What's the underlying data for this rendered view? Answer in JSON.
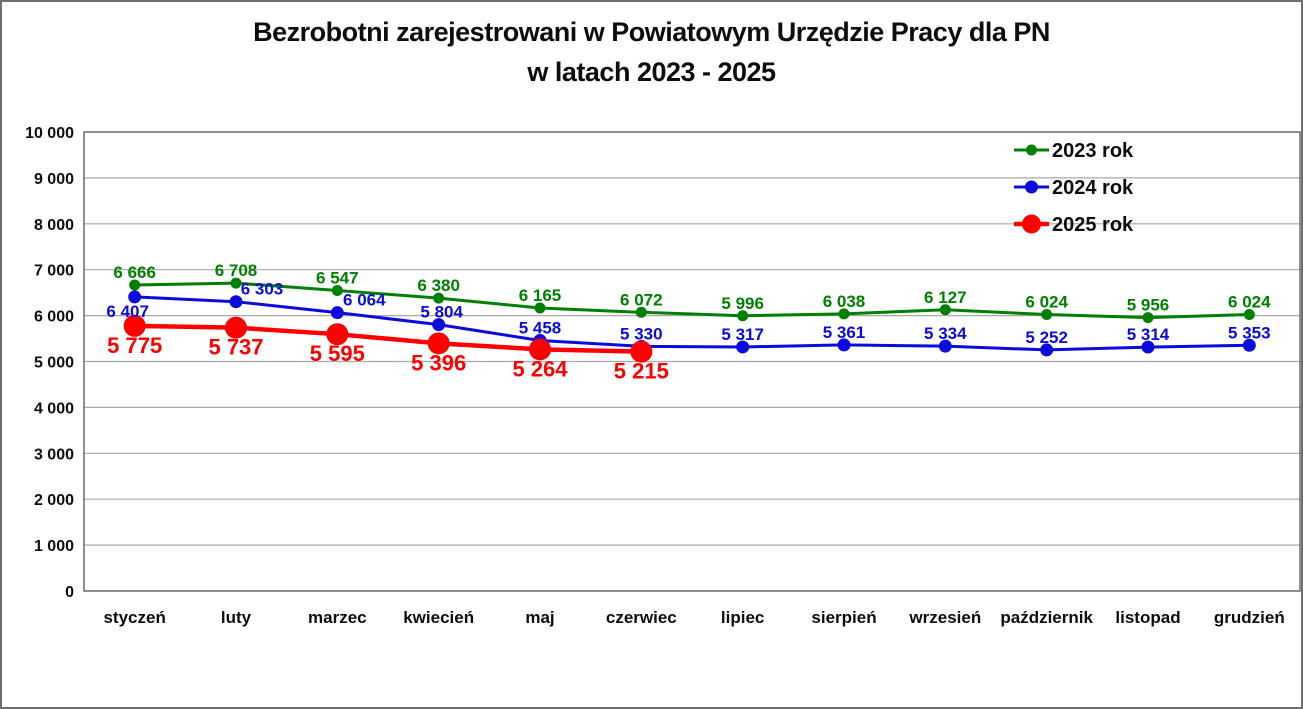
{
  "title": {
    "line1": "Bezrobotni zarejestrowani w Powiatowym Urzędzie Pracy dla PN",
    "line2": "w latach 2023 - 2025"
  },
  "chart_data": {
    "type": "line",
    "title": "Bezrobotni zarejestrowani w Powiatowym Urzędzie Pracy dla PN w latach 2023 - 2025",
    "xlabel": "",
    "ylabel": "",
    "grid": true,
    "legend_position": "top-right",
    "categories": [
      "styczeń",
      "luty",
      "marzec",
      "kwiecień",
      "maj",
      "czerwiec",
      "lipiec",
      "sierpień",
      "wrzesień",
      "październik",
      "listopad",
      "grudzień"
    ],
    "y_axis": {
      "min": 0,
      "max": 10000,
      "step": 1000,
      "tick_labels": [
        "0",
        "1 000",
        "2 000",
        "3 000",
        "4 000",
        "5 000",
        "6 000",
        "7 000",
        "8 000",
        "9 000",
        "10 000"
      ]
    },
    "series": [
      {
        "name": "2023 rok",
        "color": "#008000",
        "values": [
          6666,
          6708,
          6547,
          6380,
          6165,
          6072,
          5996,
          6038,
          6127,
          6024,
          5956,
          6024
        ],
        "labels": [
          "6 666",
          "6 708",
          "6 547",
          "6 380",
          "6 165",
          "6 072",
          "5 996",
          "6 038",
          "6 127",
          "6 024",
          "5 956",
          "6 024"
        ]
      },
      {
        "name": "2024 rok",
        "color": "#0b0bdd",
        "values": [
          6407,
          6303,
          6064,
          5804,
          5458,
          5330,
          5317,
          5361,
          5334,
          5252,
          5314,
          5353
        ],
        "labels": [
          "6 407",
          "6 303",
          "6 064",
          "5 804",
          "5 458",
          "5 330",
          "5 317",
          "5 361",
          "5 334",
          "5 252",
          "5 314",
          "5 353"
        ]
      },
      {
        "name": "2025 rok",
        "color": "#ff0000",
        "values": [
          5775,
          5737,
          5595,
          5396,
          5264,
          5215
        ],
        "labels": [
          "5 775",
          "5 737",
          "5 595",
          "5 396",
          "5 264",
          "5 215"
        ]
      }
    ],
    "legend": {
      "entries": [
        "2023 rok",
        "2024 rok",
        "2025 rok"
      ]
    }
  }
}
